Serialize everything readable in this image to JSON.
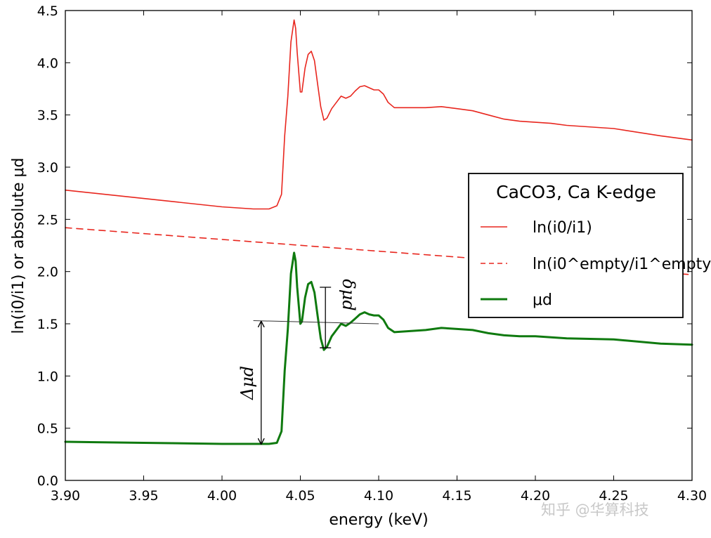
{
  "chart_data": {
    "type": "line",
    "title": "",
    "xlabel": "energy (keV)",
    "ylabel": "ln(i0/i1) or absolute μd",
    "xlim": [
      3.9,
      4.3
    ],
    "ylim": [
      0.0,
      4.5
    ],
    "xticks": [
      "3.90",
      "3.95",
      "4.00",
      "4.05",
      "4.10",
      "4.15",
      "4.20",
      "4.25",
      "4.30"
    ],
    "yticks": [
      "0.0",
      "0.5",
      "1.0",
      "1.5",
      "2.0",
      "2.5",
      "3.0",
      "3.5",
      "4.0",
      "4.5"
    ],
    "xtick_values": [
      3.9,
      3.95,
      4.0,
      4.05,
      4.1,
      4.15,
      4.2,
      4.25,
      4.3
    ],
    "ytick_values": [
      0.0,
      0.5,
      1.0,
      1.5,
      2.0,
      2.5,
      3.0,
      3.5,
      4.0,
      4.5
    ],
    "grid": false,
    "legend": {
      "title": "CaCO3, Ca K-edge",
      "placement": "center-right"
    },
    "series": [
      {
        "name": "ln(i0/i1)",
        "color": "#e8261e",
        "style": "solid",
        "x": [
          3.9,
          3.95,
          4.0,
          4.02,
          4.03,
          4.035,
          4.038,
          4.04,
          4.042,
          4.044,
          4.046,
          4.047,
          4.048,
          4.05,
          4.051,
          4.053,
          4.055,
          4.057,
          4.059,
          4.061,
          4.063,
          4.065,
          4.067,
          4.07,
          4.073,
          4.076,
          4.079,
          4.082,
          4.085,
          4.088,
          4.091,
          4.094,
          4.097,
          4.1,
          4.103,
          4.106,
          4.11,
          4.12,
          4.13,
          4.14,
          4.15,
          4.16,
          4.17,
          4.18,
          4.19,
          4.2,
          4.21,
          4.22,
          4.25,
          4.28,
          4.3
        ],
        "y": [
          2.78,
          2.7,
          2.62,
          2.6,
          2.6,
          2.63,
          2.74,
          3.3,
          3.68,
          4.2,
          4.41,
          4.33,
          4.1,
          3.72,
          3.72,
          3.95,
          4.08,
          4.11,
          4.02,
          3.8,
          3.58,
          3.45,
          3.47,
          3.56,
          3.62,
          3.68,
          3.66,
          3.68,
          3.73,
          3.77,
          3.78,
          3.76,
          3.74,
          3.74,
          3.7,
          3.62,
          3.57,
          3.57,
          3.57,
          3.58,
          3.56,
          3.54,
          3.5,
          3.46,
          3.44,
          3.43,
          3.42,
          3.4,
          3.37,
          3.3,
          3.26
        ]
      },
      {
        "name": "ln(i0^empty/i1^empty)",
        "color": "#e8261e",
        "style": "dashed",
        "x": [
          3.9,
          4.3
        ],
        "y": [
          2.42,
          1.97
        ]
      },
      {
        "name": "μd",
        "color": "#0f7a0f",
        "style": "solid-thick",
        "x": [
          3.9,
          3.95,
          4.0,
          4.02,
          4.03,
          4.035,
          4.038,
          4.04,
          4.042,
          4.044,
          4.046,
          4.047,
          4.048,
          4.05,
          4.051,
          4.053,
          4.055,
          4.057,
          4.059,
          4.061,
          4.063,
          4.065,
          4.067,
          4.07,
          4.073,
          4.076,
          4.079,
          4.082,
          4.085,
          4.088,
          4.091,
          4.094,
          4.097,
          4.1,
          4.103,
          4.106,
          4.11,
          4.12,
          4.13,
          4.14,
          4.15,
          4.16,
          4.17,
          4.18,
          4.19,
          4.2,
          4.21,
          4.22,
          4.25,
          4.28,
          4.3
        ],
        "y": [
          0.37,
          0.36,
          0.35,
          0.35,
          0.35,
          0.36,
          0.47,
          1.05,
          1.45,
          1.98,
          2.18,
          2.1,
          1.85,
          1.5,
          1.52,
          1.75,
          1.88,
          1.9,
          1.8,
          1.58,
          1.36,
          1.25,
          1.28,
          1.38,
          1.44,
          1.5,
          1.48,
          1.51,
          1.55,
          1.59,
          1.61,
          1.59,
          1.58,
          1.58,
          1.54,
          1.46,
          1.42,
          1.43,
          1.44,
          1.46,
          1.45,
          1.44,
          1.41,
          1.39,
          1.38,
          1.38,
          1.37,
          1.36,
          1.35,
          1.31,
          1.3
        ]
      }
    ],
    "annotations": [
      {
        "label": "Δμd",
        "x": 4.025,
        "y_from": 0.35,
        "y_to": 1.52
      },
      {
        "label": "δμd",
        "x": 4.066,
        "y_from": 1.27,
        "y_to": 1.85
      },
      {
        "label": "",
        "type": "reference-line",
        "x": [
          4.02,
          4.1
        ],
        "y": [
          1.53,
          1.5
        ]
      }
    ]
  },
  "watermark": "知乎 @华算科技"
}
